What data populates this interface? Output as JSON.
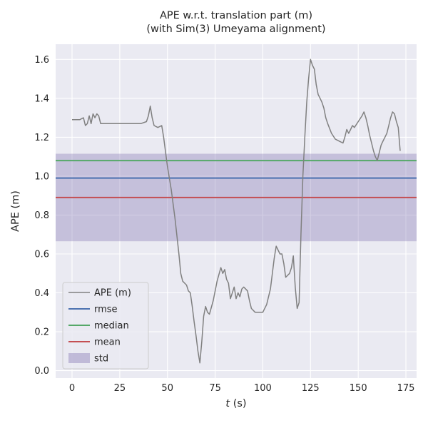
{
  "chart_data": {
    "type": "line",
    "title": "APE w.r.t. translation part (m)",
    "subtitle": "(with Sim(3) Umeyama alignment)",
    "xlabel": "t (s)",
    "xlabel_italic": "t",
    "xlabel_rest": " (s)",
    "ylabel": "APE (m)",
    "xlim": [
      -8.6,
      180.6
    ],
    "ylim": [
      -0.038,
      1.678
    ],
    "xticks": [
      0,
      25,
      50,
      75,
      100,
      125,
      150,
      175
    ],
    "xtick_labels": [
      "0",
      "25",
      "50",
      "75",
      "100",
      "125",
      "150",
      "175"
    ],
    "yticks": [
      0.0,
      0.2,
      0.4,
      0.6,
      0.8,
      1.0,
      1.2,
      1.4,
      1.6
    ],
    "ytick_labels": [
      "0.0",
      "0.2",
      "0.4",
      "0.6",
      "0.8",
      "1.0",
      "1.2",
      "1.4",
      "1.6"
    ],
    "grid": true,
    "legend": {
      "position": "lower left",
      "items": [
        "APE (m)",
        "rmse",
        "median",
        "mean",
        "std"
      ]
    },
    "colors": {
      "figure_background": "#ffffff",
      "plot_background": "#eaeaf2",
      "grid": "#ffffff",
      "text": "#262626",
      "legend_border": "#cccccc"
    },
    "series": [
      {
        "name": "APE (m)",
        "type": "line",
        "color": "#808080",
        "x": [
          0,
          2,
          4,
          6,
          7,
          8,
          9,
          10,
          11,
          12,
          13,
          14,
          15,
          17,
          20,
          24,
          28,
          32,
          36,
          39,
          40,
          41,
          42,
          43,
          45,
          47,
          48,
          50,
          52,
          54,
          56,
          57,
          58,
          59,
          60,
          61,
          62,
          63,
          64,
          65,
          66,
          67,
          68,
          69,
          70,
          71,
          72,
          74,
          76,
          78,
          79,
          80,
          81,
          82,
          83,
          84,
          85,
          86,
          87,
          88,
          89,
          90,
          92,
          93,
          94,
          96,
          98,
          100,
          102,
          104,
          105,
          106,
          107,
          108,
          109,
          110,
          111,
          112,
          113,
          114,
          115,
          116,
          117,
          118,
          119,
          120,
          121,
          122,
          123,
          124,
          125,
          126,
          127,
          128,
          129,
          130,
          131,
          132,
          133,
          134,
          136,
          138,
          140,
          142,
          143,
          144,
          145,
          146,
          147,
          148,
          150,
          152,
          153,
          154,
          155,
          156,
          157,
          158,
          159,
          160,
          161,
          162,
          163,
          164,
          165,
          166,
          167,
          168,
          169,
          170,
          171,
          172
        ],
        "y": [
          1.29,
          1.29,
          1.29,
          1.3,
          1.26,
          1.27,
          1.31,
          1.27,
          1.32,
          1.3,
          1.32,
          1.31,
          1.27,
          1.27,
          1.27,
          1.27,
          1.27,
          1.27,
          1.27,
          1.28,
          1.31,
          1.36,
          1.3,
          1.26,
          1.25,
          1.26,
          1.2,
          1.05,
          0.93,
          0.78,
          0.6,
          0.5,
          0.46,
          0.45,
          0.44,
          0.41,
          0.4,
          0.33,
          0.25,
          0.18,
          0.1,
          0.04,
          0.15,
          0.28,
          0.33,
          0.3,
          0.29,
          0.36,
          0.46,
          0.53,
          0.5,
          0.52,
          0.47,
          0.45,
          0.37,
          0.4,
          0.43,
          0.37,
          0.4,
          0.38,
          0.42,
          0.43,
          0.41,
          0.36,
          0.32,
          0.3,
          0.3,
          0.3,
          0.34,
          0.42,
          0.5,
          0.58,
          0.64,
          0.62,
          0.6,
          0.6,
          0.55,
          0.48,
          0.49,
          0.5,
          0.53,
          0.59,
          0.43,
          0.32,
          0.35,
          0.7,
          1.0,
          1.2,
          1.38,
          1.5,
          1.6,
          1.57,
          1.55,
          1.47,
          1.42,
          1.4,
          1.38,
          1.35,
          1.3,
          1.27,
          1.22,
          1.19,
          1.18,
          1.17,
          1.2,
          1.24,
          1.22,
          1.24,
          1.26,
          1.25,
          1.28,
          1.31,
          1.33,
          1.3,
          1.26,
          1.21,
          1.17,
          1.13,
          1.1,
          1.08,
          1.12,
          1.16,
          1.18,
          1.2,
          1.22,
          1.26,
          1.3,
          1.33,
          1.32,
          1.28,
          1.25,
          1.13
        ]
      },
      {
        "name": "rmse",
        "type": "hline",
        "color": "#4c72b0",
        "value": 0.99
      },
      {
        "name": "median",
        "type": "hline",
        "color": "#55a868",
        "value": 1.08
      },
      {
        "name": "mean",
        "type": "hline",
        "color": "#c44e52",
        "value": 0.89
      },
      {
        "name": "std",
        "type": "band",
        "color": "#8172b2",
        "range": [
          0.665,
          1.115
        ],
        "opacity": 0.35
      }
    ]
  }
}
